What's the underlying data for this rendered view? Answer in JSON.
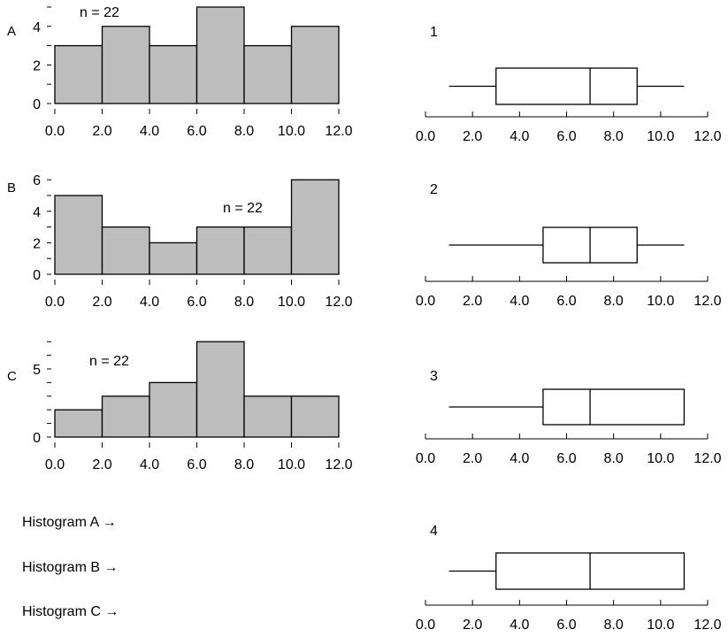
{
  "chart_data": [
    {
      "type": "bar",
      "title": "A",
      "annotation": "n = 22",
      "categories": [
        "0-2",
        "2-4",
        "4-6",
        "6-8",
        "8-10",
        "10-12"
      ],
      "bin_edges": [
        0,
        2,
        4,
        6,
        8,
        10,
        12
      ],
      "values": [
        3,
        4,
        3,
        5,
        3,
        4
      ],
      "ylim": [
        0,
        5
      ],
      "yticks": [
        0,
        2,
        4
      ],
      "xticks": [
        "0.0",
        "2.0",
        "4.0",
        "6.0",
        "8.0",
        "10.0",
        "12.0"
      ],
      "bar_color": "#bdbdbd"
    },
    {
      "type": "bar",
      "title": "B",
      "annotation": "n = 22",
      "categories": [
        "0-2",
        "2-4",
        "4-6",
        "6-8",
        "8-10",
        "10-12"
      ],
      "bin_edges": [
        0,
        2,
        4,
        6,
        8,
        10,
        12
      ],
      "values": [
        5,
        3,
        2,
        3,
        3,
        6
      ],
      "ylim": [
        0,
        6
      ],
      "yticks": [
        0,
        2,
        4,
        6
      ],
      "xticks": [
        "0.0",
        "2.0",
        "4.0",
        "6.0",
        "8.0",
        "10.0",
        "12.0"
      ],
      "bar_color": "#bdbdbd"
    },
    {
      "type": "bar",
      "title": "C",
      "annotation": "n = 22",
      "categories": [
        "0-2",
        "2-4",
        "4-6",
        "6-8",
        "8-10",
        "10-12"
      ],
      "bin_edges": [
        0,
        2,
        4,
        6,
        8,
        10,
        12
      ],
      "values": [
        2,
        3,
        4,
        7,
        3,
        3
      ],
      "ylim": [
        0,
        7
      ],
      "yticks": [
        0,
        5
      ],
      "xticks": [
        "0.0",
        "2.0",
        "4.0",
        "6.0",
        "8.0",
        "10.0",
        "12.0"
      ],
      "bar_color": "#bdbdbd"
    },
    {
      "type": "boxplot",
      "title": "1",
      "min": 1,
      "q1": 3,
      "median": 7,
      "q3": 9,
      "max": 11,
      "xlim": [
        0,
        12
      ],
      "xticks": [
        "0.0",
        "2.0",
        "4.0",
        "6.0",
        "8.0",
        "10.0",
        "12.0"
      ]
    },
    {
      "type": "boxplot",
      "title": "2",
      "min": 1,
      "q1": 5,
      "median": 7,
      "q3": 9,
      "max": 11,
      "xlim": [
        0,
        12
      ],
      "xticks": [
        "0.0",
        "2.0",
        "4.0",
        "6.0",
        "8.0",
        "10.0",
        "12.0"
      ]
    },
    {
      "type": "boxplot",
      "title": "3",
      "min": 1,
      "q1": 5,
      "median": 7,
      "q3": 11,
      "max": 11,
      "xlim": [
        0,
        12
      ],
      "xticks": [
        "0.0",
        "2.0",
        "4.0",
        "6.0",
        "8.0",
        "10.0",
        "12.0"
      ]
    },
    {
      "type": "boxplot",
      "title": "4",
      "min": 1,
      "q1": 3,
      "median": 7,
      "q3": 11,
      "max": 11,
      "xlim": [
        0,
        12
      ],
      "xticks": [
        "0.0",
        "2.0",
        "4.0",
        "6.0",
        "8.0",
        "10.0",
        "12.0"
      ]
    }
  ],
  "matching": {
    "labels": [
      "Histogram A",
      "Histogram B",
      "Histogram C"
    ],
    "arrow": "→"
  }
}
